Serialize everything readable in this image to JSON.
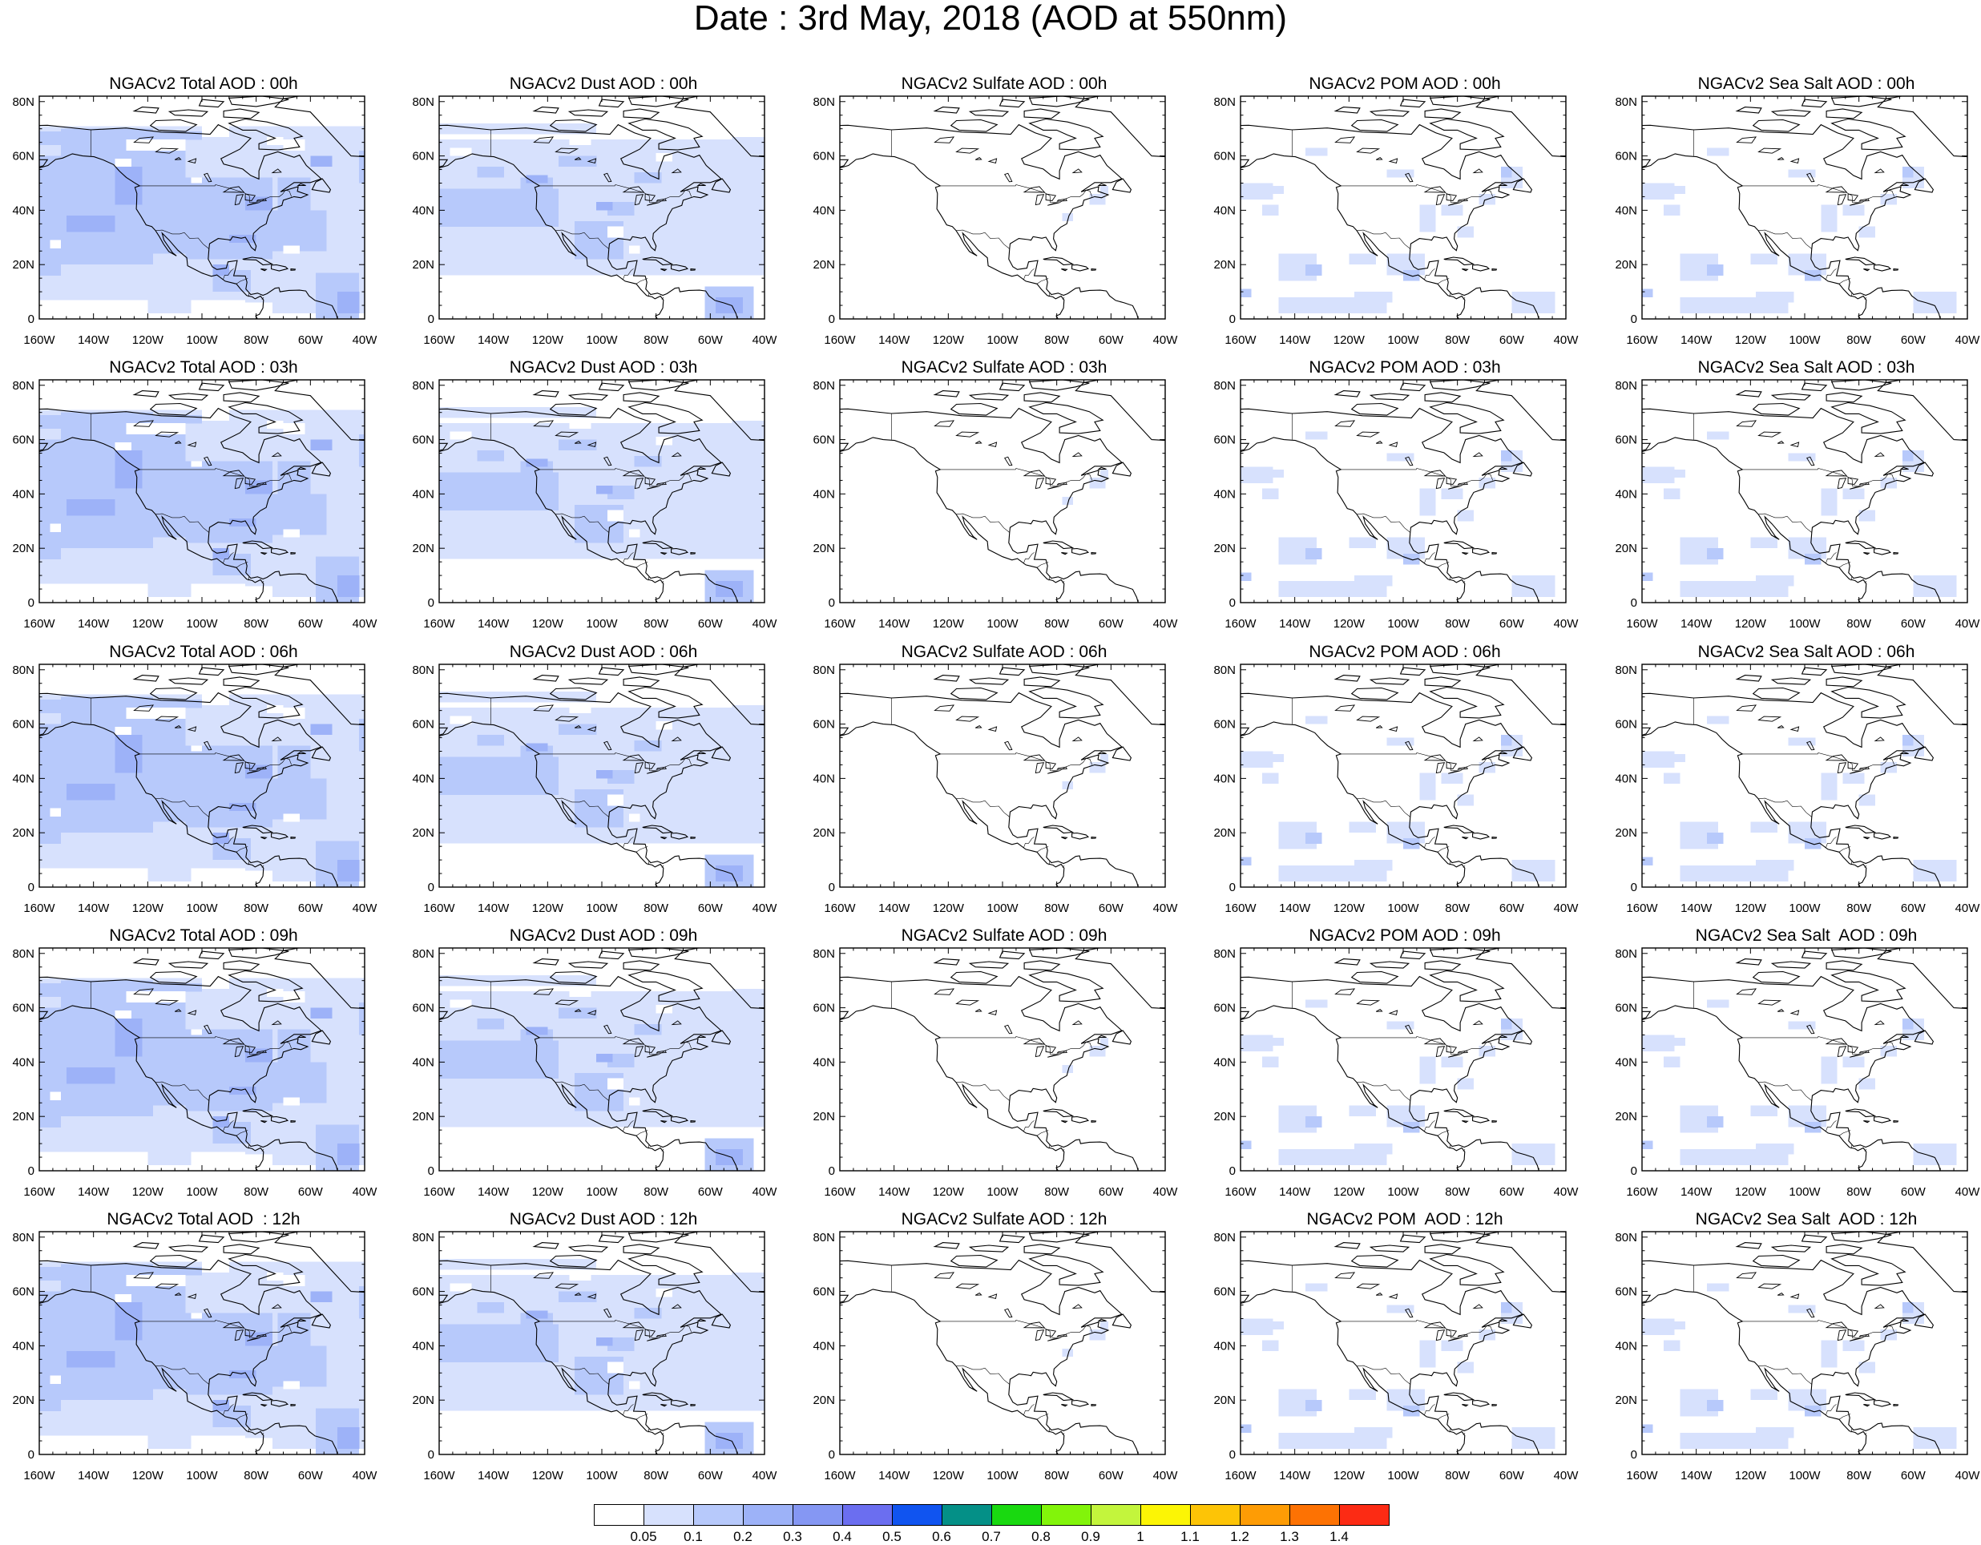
{
  "title": "Date : 3rd May, 2018 (AOD at 550nm)",
  "columns": [
    {
      "species": "Total",
      "level": 3
    },
    {
      "species": "Dust",
      "level": 2
    },
    {
      "species": "Sulfate",
      "level": 0
    },
    {
      "species": "POM",
      "level": 1
    },
    {
      "species": "Sea Salt",
      "level": 1
    }
  ],
  "panels": [
    [
      "NGACv2 Total AOD : 00h",
      "NGACv2 Dust AOD : 00h",
      "NGACv2 Sulfate AOD : 00h",
      "NGACv2 POM AOD : 00h",
      "NGACv2 Sea Salt AOD : 00h"
    ],
    [
      "NGACv2 Total AOD : 03h",
      "NGACv2 Dust AOD : 03h",
      "NGACv2 Sulfate AOD : 03h",
      "NGACv2 POM AOD : 03h",
      "NGACv2 Sea Salt AOD : 03h"
    ],
    [
      "NGACv2 Total AOD : 06h",
      "NGACv2 Dust AOD : 06h",
      "NGACv2 Sulfate AOD : 06h",
      "NGACv2 POM AOD : 06h",
      "NGACv2 Sea Salt AOD : 06h"
    ],
    [
      "NGACv2 Total AOD : 09h",
      "NGACv2 Dust AOD : 09h",
      "NGACv2 Sulfate AOD : 09h",
      "NGACv2 POM AOD : 09h",
      "NGACv2 Sea Salt  AOD : 09h"
    ],
    [
      "NGACv2 Total AOD  : 12h",
      "NGACv2 Dust AOD : 12h",
      "NGACv2 Sulfate AOD : 12h",
      "NGACv2 POM  AOD : 12h",
      "NGACv2 Sea Salt  AOD : 12h"
    ]
  ],
  "lat_ticks": [
    "0",
    "20N",
    "40N",
    "60N",
    "80N"
  ],
  "lon_ticks": [
    "160W",
    "140W",
    "120W",
    "100W",
    "80W",
    "60W",
    "40W"
  ],
  "map_extent": {
    "lon_min": -160,
    "lon_max": -40,
    "lat_min": 0,
    "lat_max": 82
  },
  "colorbar": {
    "labels": [
      "0.05",
      "0.1",
      "0.2",
      "0.3",
      "0.4",
      "0.5",
      "0.6",
      "0.7",
      "0.8",
      "0.9",
      "1",
      "1.1",
      "1.2",
      "1.3",
      "1.4"
    ],
    "colors": [
      "#ffffff",
      "#d7e1fd",
      "#b7c9fb",
      "#9db2f8",
      "#8597f3",
      "#6b6ef0",
      "#1054f0",
      "#049087",
      "#19d910",
      "#82f40a",
      "#c3f53c",
      "#fcf505",
      "#fdc406",
      "#fe9c05",
      "#fd7203",
      "#fc2b14"
    ]
  }
}
